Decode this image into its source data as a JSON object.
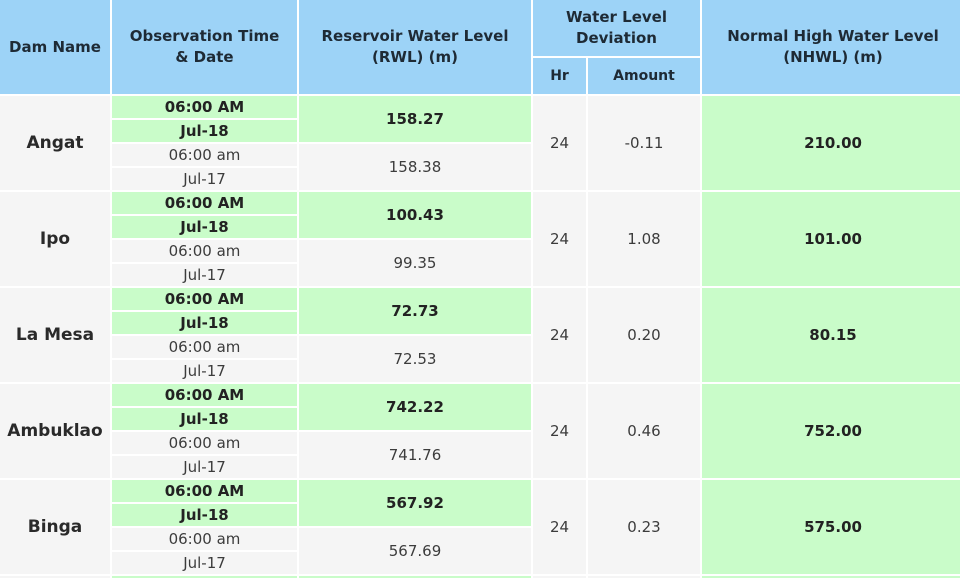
{
  "headers": {
    "dam_name": "Dam Name",
    "observation": "Observation Time & Date",
    "rwl": "Reservoir Water Level (RWL) (m)",
    "deviation": "Water Level Deviation",
    "hr": "Hr",
    "amount": "Amount",
    "nhwl": "Normal High Water Level (NHWL) (m)"
  },
  "rows": [
    {
      "name": "Angat",
      "time_now": "06:00 AM",
      "date_now": "Jul-18",
      "time_prev": "06:00 am",
      "date_prev": "Jul-17",
      "rwl_now": "158.27",
      "rwl_prev": "158.38",
      "hr": "24",
      "amount": "-0.11",
      "nhwl": "210.00"
    },
    {
      "name": "Ipo",
      "time_now": "06:00 AM",
      "date_now": "Jul-18",
      "time_prev": "06:00 am",
      "date_prev": "Jul-17",
      "rwl_now": "100.43",
      "rwl_prev": "99.35",
      "hr": "24",
      "amount": "1.08",
      "nhwl": "101.00"
    },
    {
      "name": "La Mesa",
      "time_now": "06:00 AM",
      "date_now": "Jul-18",
      "time_prev": "06:00 am",
      "date_prev": "Jul-17",
      "rwl_now": "72.73",
      "rwl_prev": "72.53",
      "hr": "24",
      "amount": "0.20",
      "nhwl": "80.15"
    },
    {
      "name": "Ambuklao",
      "time_now": "06:00 AM",
      "date_now": "Jul-18",
      "time_prev": "06:00 am",
      "date_prev": "Jul-17",
      "rwl_now": "742.22",
      "rwl_prev": "741.76",
      "hr": "24",
      "amount": "0.46",
      "nhwl": "752.00"
    },
    {
      "name": "Binga",
      "time_now": "06:00 AM",
      "date_now": "Jul-18",
      "time_prev": "06:00 am",
      "date_prev": "Jul-17",
      "rwl_now": "567.92",
      "rwl_prev": "567.69",
      "hr": "24",
      "amount": "0.23",
      "nhwl": "575.00"
    }
  ]
}
